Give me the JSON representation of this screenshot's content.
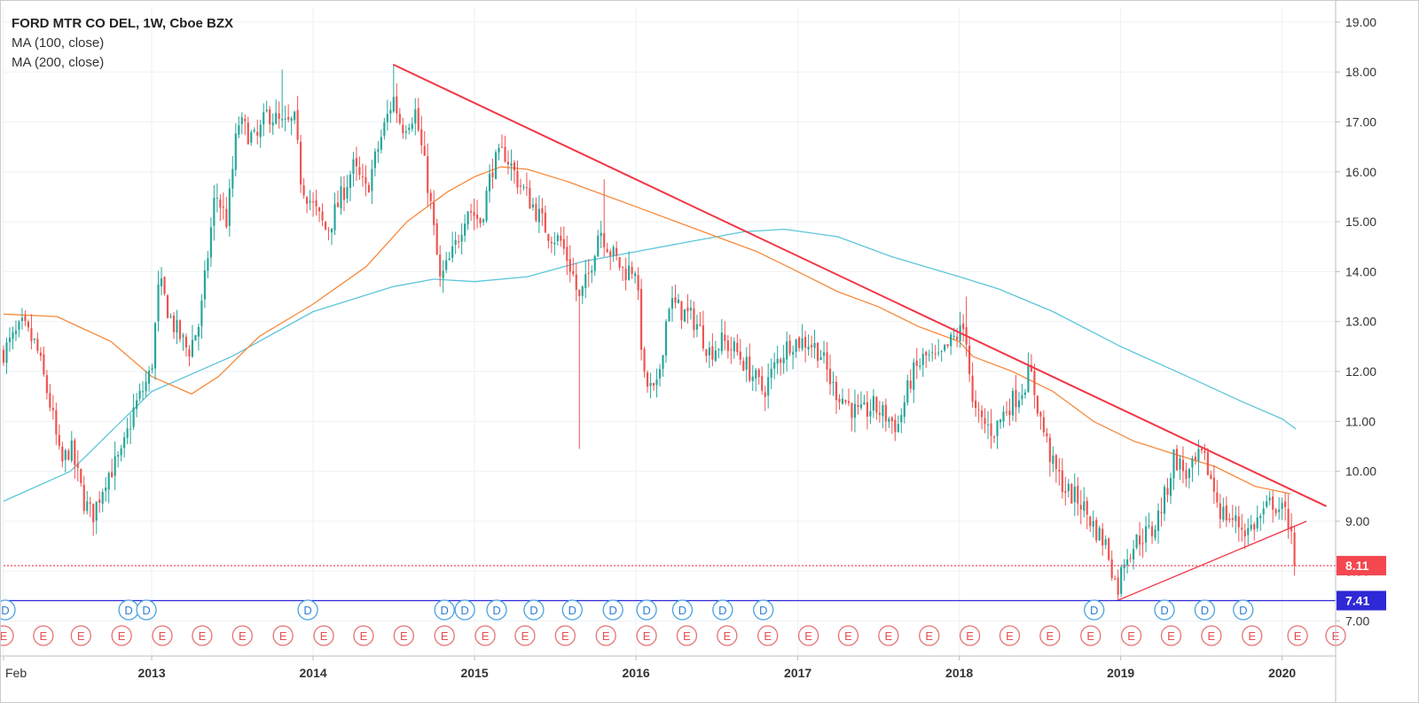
{
  "chart_data": {
    "type": "candlestick",
    "title": "FORD MTR CO DEL, 1W, Cboe BZX",
    "indicators": [
      {
        "name": "MA (100, close)",
        "color": "#f7893b"
      },
      {
        "name": "MA (200, close)",
        "color": "#5cc6da"
      }
    ],
    "y_axis": {
      "position": "right",
      "ylim": [
        6.3,
        19.3
      ],
      "ticks": [
        "19.00",
        "18.00",
        "17.00",
        "16.00",
        "15.00",
        "14.00",
        "13.00",
        "12.00",
        "11.00",
        "10.00",
        "9.00",
        "8.00",
        "7.00"
      ]
    },
    "x_axis": {
      "range": [
        "2012-02-01",
        "2020-05-01"
      ],
      "ticks": [
        {
          "label": "Feb",
          "date": "2012-02-01"
        },
        {
          "label": "2013",
          "date": "2013-01-01"
        },
        {
          "label": "2014",
          "date": "2014-01-01"
        },
        {
          "label": "2015",
          "date": "2015-01-01"
        },
        {
          "label": "2016",
          "date": "2016-01-01"
        },
        {
          "label": "2017",
          "date": "2017-01-01"
        },
        {
          "label": "2018",
          "date": "2018-01-01"
        },
        {
          "label": "2019",
          "date": "2019-01-01"
        },
        {
          "label": "2020",
          "date": "2020-01-01"
        }
      ]
    },
    "price_anchors": [
      [
        "2012-02-01",
        12.4
      ],
      [
        "2012-03-15",
        12.9
      ],
      [
        "2012-04-15",
        12.5
      ],
      [
        "2012-05-20",
        11.2
      ],
      [
        "2012-06-10",
        10.1
      ],
      [
        "2012-07-01",
        10.5
      ],
      [
        "2012-08-01",
        9.4
      ],
      [
        "2012-08-20",
        9.1
      ],
      [
        "2012-09-20",
        9.9
      ],
      [
        "2012-10-25",
        10.3
      ],
      [
        "2012-11-20",
        11.2
      ],
      [
        "2012-12-31",
        12.0
      ],
      [
        "2013-01-18",
        13.8
      ],
      [
        "2013-02-15",
        13.0
      ],
      [
        "2013-03-25",
        12.4
      ],
      [
        "2013-04-20",
        13.0
      ],
      [
        "2013-05-25",
        15.6
      ],
      [
        "2013-06-20",
        15.0
      ],
      [
        "2013-07-15",
        17.0
      ],
      [
        "2013-08-25",
        16.6
      ],
      [
        "2013-09-20",
        17.2
      ],
      [
        "2013-10-25",
        16.9
      ],
      [
        "2013-11-20",
        17.0
      ],
      [
        "2013-12-05",
        15.8
      ],
      [
        "2014-01-01",
        15.3
      ],
      [
        "2014-02-01",
        14.8
      ],
      [
        "2014-03-01",
        15.4
      ],
      [
        "2014-04-01",
        16.1
      ],
      [
        "2014-05-01",
        15.6
      ],
      [
        "2014-06-01",
        16.6
      ],
      [
        "2014-07-01",
        17.5
      ],
      [
        "2014-07-20",
        16.9
      ],
      [
        "2014-08-20",
        17.2
      ],
      [
        "2014-09-20",
        15.6
      ],
      [
        "2014-10-15",
        13.8
      ],
      [
        "2014-11-15",
        14.4
      ],
      [
        "2014-12-15",
        15.3
      ],
      [
        "2015-01-15",
        15.0
      ],
      [
        "2015-02-10",
        16.1
      ],
      [
        "2015-03-10",
        16.4
      ],
      [
        "2015-04-10",
        15.8
      ],
      [
        "2015-05-15",
        15.3
      ],
      [
        "2015-06-15",
        14.8
      ],
      [
        "2015-07-15",
        14.6
      ],
      [
        "2015-08-10",
        14.0
      ],
      [
        "2015-08-25",
        13.4
      ],
      [
        "2015-09-15",
        13.9
      ],
      [
        "2015-10-10",
        14.9
      ],
      [
        "2015-11-05",
        14.4
      ],
      [
        "2015-12-05",
        14.0
      ],
      [
        "2015-12-31",
        14.1
      ],
      [
        "2016-01-20",
        11.8
      ],
      [
        "2016-02-15",
        11.5
      ],
      [
        "2016-03-15",
        13.4
      ],
      [
        "2016-04-15",
        13.2
      ],
      [
        "2016-05-15",
        13.0
      ],
      [
        "2016-06-15",
        12.4
      ],
      [
        "2016-07-15",
        12.6
      ],
      [
        "2016-08-15",
        12.4
      ],
      [
        "2016-09-15",
        12.0
      ],
      [
        "2016-10-15",
        11.6
      ],
      [
        "2016-11-15",
        12.2
      ],
      [
        "2016-12-15",
        12.6
      ],
      [
        "2017-01-25",
        12.6
      ],
      [
        "2017-02-20",
        12.4
      ],
      [
        "2017-03-20",
        11.7
      ],
      [
        "2017-04-20",
        11.4
      ],
      [
        "2017-05-20",
        11.1
      ],
      [
        "2017-06-20",
        11.3
      ],
      [
        "2017-07-20",
        11.1
      ],
      [
        "2017-08-15",
        10.9
      ],
      [
        "2017-09-15",
        11.9
      ],
      [
        "2017-10-15",
        12.3
      ],
      [
        "2017-11-15",
        12.2
      ],
      [
        "2017-12-15",
        12.6
      ],
      [
        "2018-01-15",
        12.9
      ],
      [
        "2018-02-01",
        11.2
      ],
      [
        "2018-02-20",
        11.0
      ],
      [
        "2018-03-20",
        10.8
      ],
      [
        "2018-04-20",
        11.3
      ],
      [
        "2018-05-20",
        11.6
      ],
      [
        "2018-06-10",
        12.0
      ],
      [
        "2018-07-05",
        11.0
      ],
      [
        "2018-08-01",
        10.1
      ],
      [
        "2018-09-01",
        9.6
      ],
      [
        "2018-10-01",
        9.4
      ],
      [
        "2018-11-01",
        8.9
      ],
      [
        "2018-12-01",
        8.5
      ],
      [
        "2018-12-24",
        7.6
      ],
      [
        "2019-01-10",
        8.3
      ],
      [
        "2019-02-15",
        8.7
      ],
      [
        "2019-03-15",
        8.8
      ],
      [
        "2019-04-15",
        9.6
      ],
      [
        "2019-05-01",
        10.3
      ],
      [
        "2019-06-01",
        9.9
      ],
      [
        "2019-07-01",
        10.3
      ],
      [
        "2019-07-15",
        10.1
      ],
      [
        "2019-08-15",
        9.2
      ],
      [
        "2019-09-15",
        9.0
      ],
      [
        "2019-10-15",
        8.8
      ],
      [
        "2019-11-15",
        9.1
      ],
      [
        "2019-12-10",
        9.4
      ],
      [
        "2020-01-10",
        9.1
      ],
      [
        "2020-01-24",
        8.9
      ],
      [
        "2020-02-03",
        8.11
      ]
    ],
    "ma100_points": [
      [
        "2012-02-01",
        13.15
      ],
      [
        "2012-06-01",
        13.1
      ],
      [
        "2012-10-01",
        12.6
      ],
      [
        "2013-01-01",
        11.9
      ],
      [
        "2013-04-01",
        11.55
      ],
      [
        "2013-06-01",
        11.9
      ],
      [
        "2013-09-01",
        12.7
      ],
      [
        "2014-01-01",
        13.35
      ],
      [
        "2014-05-01",
        14.1
      ],
      [
        "2014-08-01",
        15.0
      ],
      [
        "2014-11-01",
        15.6
      ],
      [
        "2015-01-01",
        15.9
      ],
      [
        "2015-03-01",
        16.1
      ],
      [
        "2015-05-01",
        16.05
      ],
      [
        "2015-08-01",
        15.8
      ],
      [
        "2015-11-01",
        15.5
      ],
      [
        "2016-01-01",
        15.3
      ],
      [
        "2016-04-01",
        15.0
      ],
      [
        "2016-07-01",
        14.7
      ],
      [
        "2016-10-01",
        14.4
      ],
      [
        "2017-01-01",
        14.0
      ],
      [
        "2017-04-01",
        13.6
      ],
      [
        "2017-07-01",
        13.3
      ],
      [
        "2017-10-01",
        12.9
      ],
      [
        "2018-01-01",
        12.6
      ],
      [
        "2018-02-01",
        12.3
      ],
      [
        "2018-05-01",
        12.0
      ],
      [
        "2018-08-01",
        11.6
      ],
      [
        "2018-11-01",
        11.0
      ],
      [
        "2019-02-01",
        10.6
      ],
      [
        "2019-05-01",
        10.35
      ],
      [
        "2019-08-01",
        10.1
      ],
      [
        "2019-11-01",
        9.7
      ],
      [
        "2020-01-20",
        9.55
      ]
    ],
    "ma200_points": [
      [
        "2012-02-01",
        9.4
      ],
      [
        "2012-07-01",
        10.0
      ],
      [
        "2013-01-01",
        11.6
      ],
      [
        "2013-07-01",
        12.3
      ],
      [
        "2014-01-01",
        13.2
      ],
      [
        "2014-07-01",
        13.7
      ],
      [
        "2014-10-01",
        13.85
      ],
      [
        "2015-01-01",
        13.8
      ],
      [
        "2015-05-01",
        13.9
      ],
      [
        "2015-09-01",
        14.2
      ],
      [
        "2016-01-01",
        14.4
      ],
      [
        "2016-05-01",
        14.6
      ],
      [
        "2016-09-01",
        14.8
      ],
      [
        "2016-12-01",
        14.85
      ],
      [
        "2017-04-01",
        14.7
      ],
      [
        "2017-08-01",
        14.3
      ],
      [
        "2018-01-01",
        13.9
      ],
      [
        "2018-04-01",
        13.65
      ],
      [
        "2018-08-01",
        13.2
      ],
      [
        "2019-01-01",
        12.5
      ],
      [
        "2019-06-01",
        11.9
      ],
      [
        "2019-10-01",
        11.4
      ],
      [
        "2020-01-01",
        11.05
      ],
      [
        "2020-02-01",
        10.85
      ]
    ],
    "trendlines": [
      {
        "name": "descending",
        "from": [
          "2014-07-01",
          18.15
        ],
        "to": [
          "2020-04-10",
          9.3
        ],
        "color": "#f23645"
      },
      {
        "name": "support",
        "from": [
          "2018-12-24",
          7.41
        ],
        "to": [
          "2020-02-25",
          9.0
        ],
        "color": "#f23645"
      }
    ],
    "horizontal_lines": [
      {
        "price": 7.41,
        "color": "#2f28d6",
        "label": "7.41"
      },
      {
        "price": 8.11,
        "color": "#f23645",
        "dashed": true,
        "label": "8.11"
      }
    ],
    "dividend_markers": {
      "label": "D",
      "dates": [
        "2012-02-05",
        "2012-11-10",
        "2012-12-20",
        "2013-12-20",
        "2014-10-25",
        "2014-12-10",
        "2015-02-20",
        "2015-05-15",
        "2015-08-10",
        "2015-11-10",
        "2016-01-25",
        "2016-04-15",
        "2016-07-15",
        "2016-10-15",
        "2018-11-02",
        "2019-04-10",
        "2019-07-10",
        "2019-10-05"
      ]
    },
    "earnings_markers": {
      "label": "E",
      "dates": [
        "2012-02-01",
        "2012-05-01",
        "2012-07-25",
        "2012-10-25",
        "2013-01-25",
        "2013-04-25",
        "2013-07-25",
        "2013-10-25",
        "2014-01-25",
        "2014-04-25",
        "2014-07-25",
        "2014-10-25",
        "2015-01-25",
        "2015-04-25",
        "2015-07-25",
        "2015-10-25",
        "2016-01-25",
        "2016-04-25",
        "2016-07-25",
        "2016-10-25",
        "2017-01-25",
        "2017-04-25",
        "2017-07-25",
        "2017-10-25",
        "2018-01-25",
        "2018-04-25",
        "2018-07-25",
        "2018-10-25",
        "2019-01-25",
        "2019-04-25",
        "2019-07-25",
        "2019-10-25",
        "2020-02-05",
        "2020-05-01"
      ]
    },
    "colors": {
      "up": "#26a69a",
      "down": "#ef5350",
      "grid": "#eef0f3",
      "axis_text": "#333333",
      "ma100": "#f7893b",
      "ma200": "#5cc6da",
      "trendline": "#f23645",
      "support_line": "#2f28d6",
      "last_price_bg": "#f4474f",
      "level_bg": "#2f28d6"
    }
  }
}
